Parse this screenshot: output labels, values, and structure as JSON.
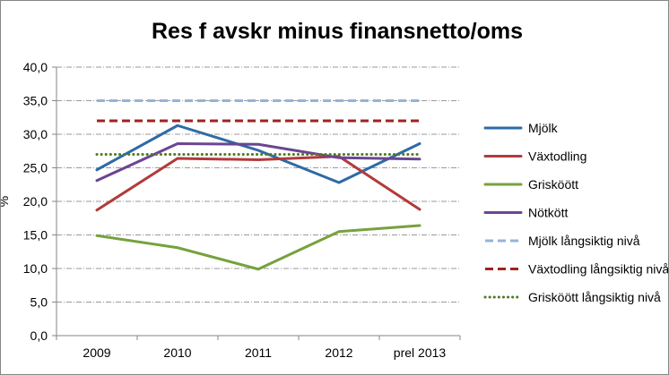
{
  "chart_data": {
    "type": "line",
    "title": "Res f avskr minus finansnetto/oms",
    "xlabel": "",
    "ylabel": "%",
    "categories": [
      "2009",
      "2010",
      "2011",
      "2012",
      "prel 2013"
    ],
    "ylim": [
      0,
      40
    ],
    "yticks": [
      "0,0",
      "5,0",
      "10,0",
      "15,0",
      "20,0",
      "25,0",
      "30,0",
      "35,0",
      "40,0"
    ],
    "grid": true,
    "legend_position": "right",
    "series": [
      {
        "name": "Mjölk",
        "values": [
          24.7,
          31.3,
          27.6,
          22.8,
          28.6
        ],
        "color": "#2e6aa6",
        "style": "solid"
      },
      {
        "name": "Växtodling",
        "values": [
          18.7,
          26.4,
          26.2,
          26.7,
          18.8
        ],
        "color": "#b23a3a",
        "style": "solid"
      },
      {
        "name": "Grisköött",
        "values": [
          14.9,
          13.1,
          9.9,
          15.5,
          16.4
        ],
        "color": "#77a13e",
        "style": "solid"
      },
      {
        "name": "Nötkött",
        "values": [
          23.1,
          28.6,
          28.5,
          26.5,
          26.3
        ],
        "color": "#6b4593",
        "style": "solid"
      },
      {
        "name": "Mjölk långsiktig nivå",
        "values": [
          35,
          35,
          35,
          35,
          35
        ],
        "color": "#95b3d7",
        "style": "dash"
      },
      {
        "name": "Växtodling långsiktig nivå",
        "values": [
          32,
          32,
          32,
          32,
          32
        ],
        "color": "#a0221f",
        "style": "dash"
      },
      {
        "name": "Grisköött långsiktig nivå",
        "values": [
          27,
          27,
          27,
          27,
          27
        ],
        "color": "#4f7a1e",
        "style": "dot"
      }
    ]
  }
}
